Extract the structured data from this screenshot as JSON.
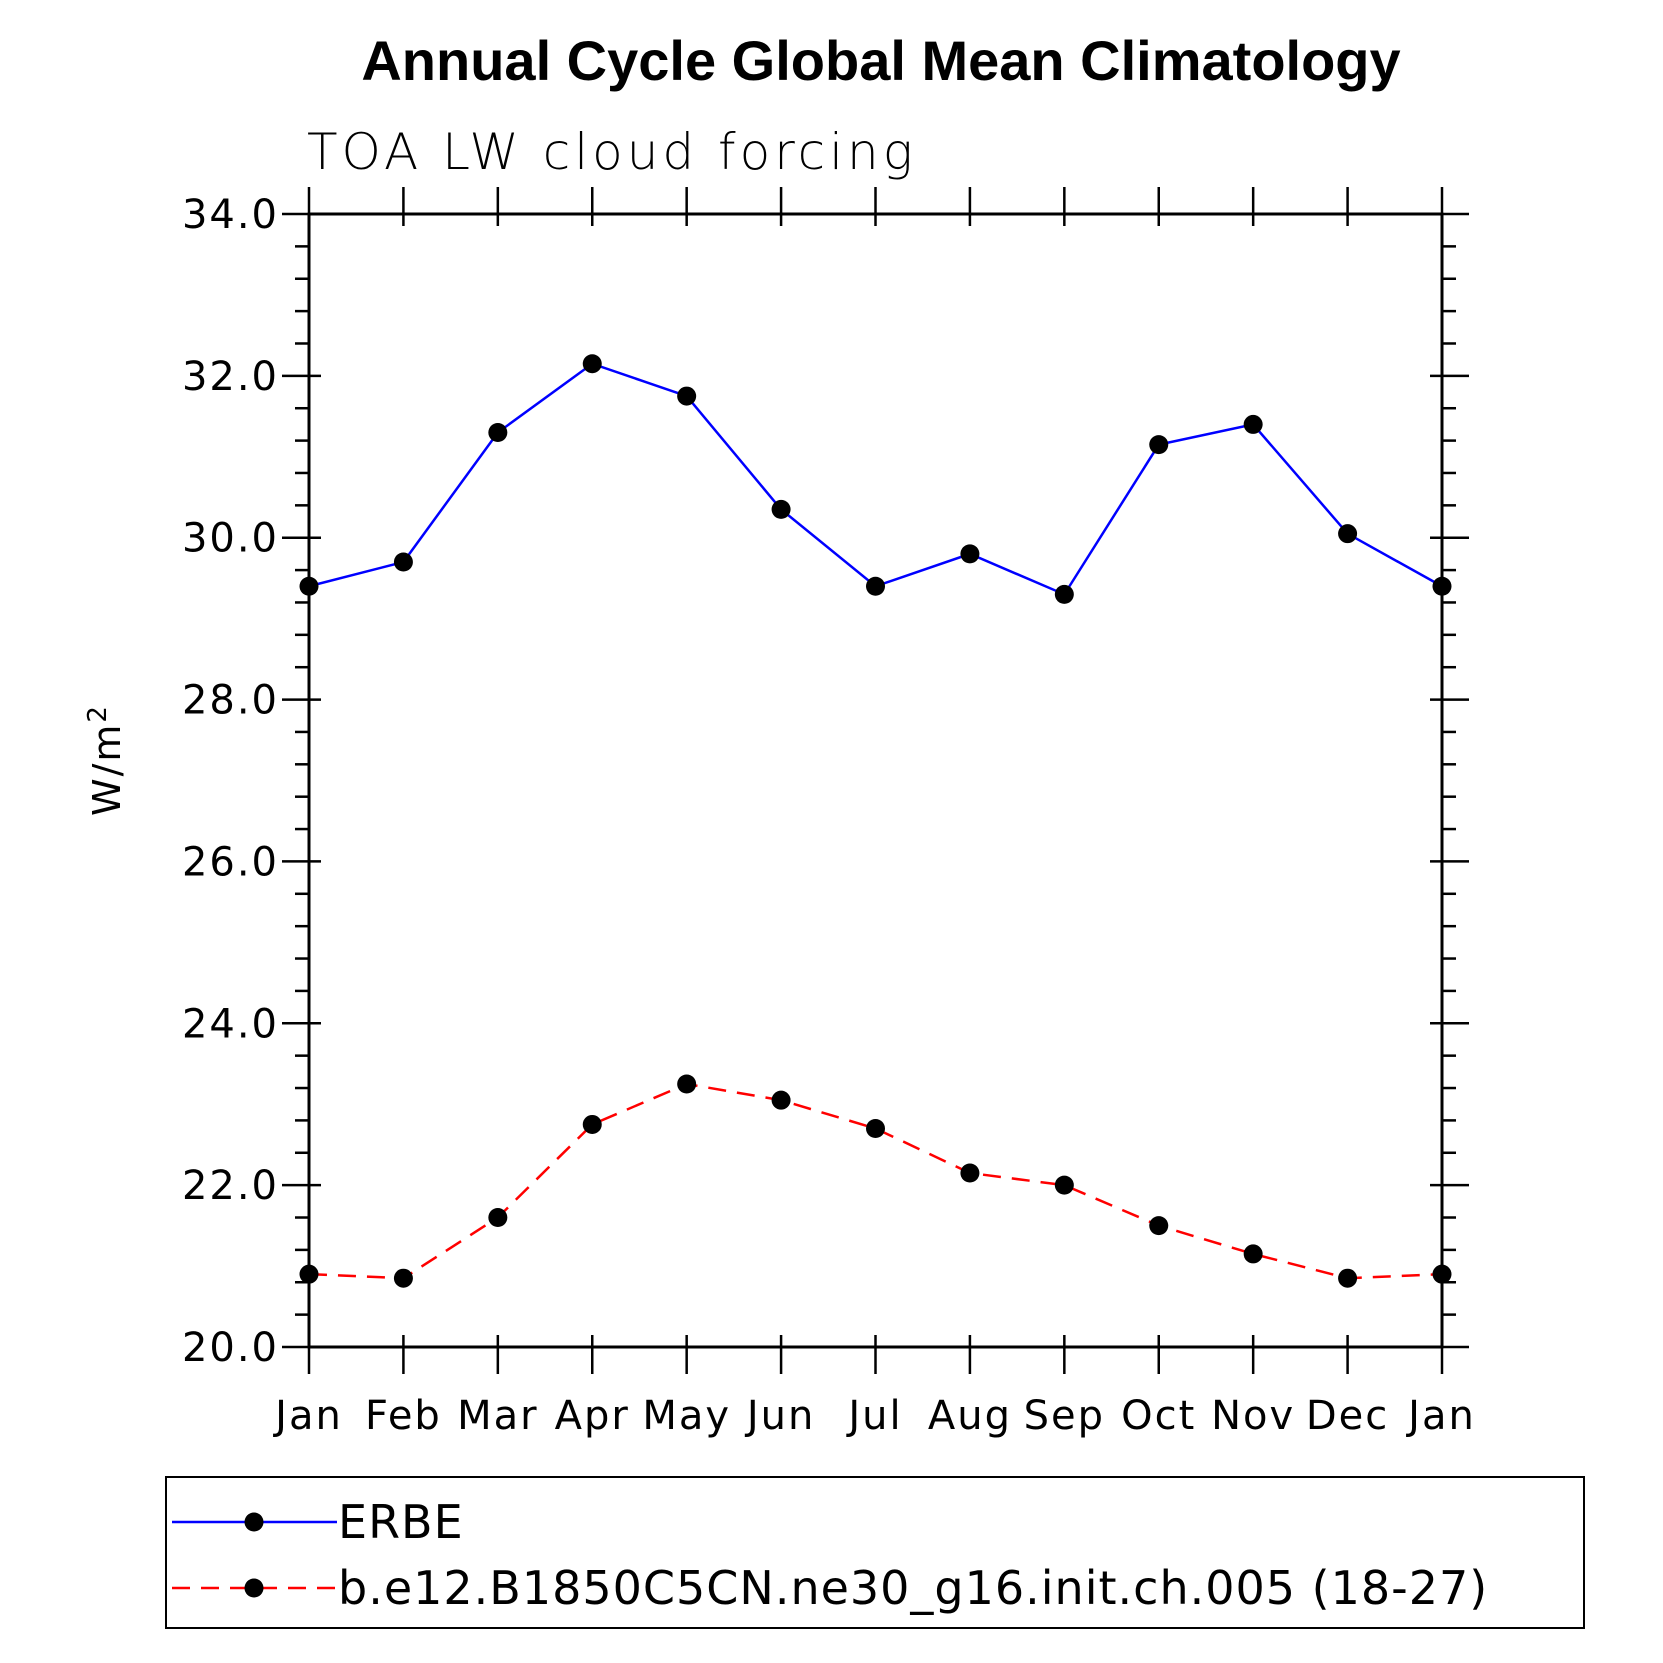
{
  "chart_data": {
    "type": "line",
    "title": "Annual Cycle Global Mean Climatology",
    "subtitle": "TOA LW cloud forcing",
    "ylabel": "W/m",
    "ylabel_superscript": "2",
    "ylim": [
      20.0,
      34.0
    ],
    "yticks": [
      "20.0",
      "22.0",
      "24.0",
      "26.0",
      "28.0",
      "30.0",
      "32.0",
      "34.0"
    ],
    "categories": [
      "Jan",
      "Feb",
      "Mar",
      "Apr",
      "May",
      "Jun",
      "Jul",
      "Aug",
      "Sep",
      "Oct",
      "Nov",
      "Dec",
      "Jan"
    ],
    "legend_position": "bottom",
    "series": [
      {
        "name": "ERBE",
        "color": "#0000ff",
        "dashed": false,
        "values": [
          29.4,
          29.7,
          31.3,
          32.15,
          31.75,
          30.35,
          29.4,
          29.8,
          29.3,
          31.15,
          31.4,
          30.05,
          29.4
        ]
      },
      {
        "name": "b.e12.B1850C5CN.ne30_g16.init.ch.005 (18-27)",
        "color": "#ff0000",
        "dashed": true,
        "values": [
          20.9,
          20.85,
          21.6,
          22.75,
          23.25,
          23.05,
          22.7,
          22.15,
          22.0,
          21.5,
          21.15,
          20.85,
          20.9
        ]
      }
    ]
  }
}
